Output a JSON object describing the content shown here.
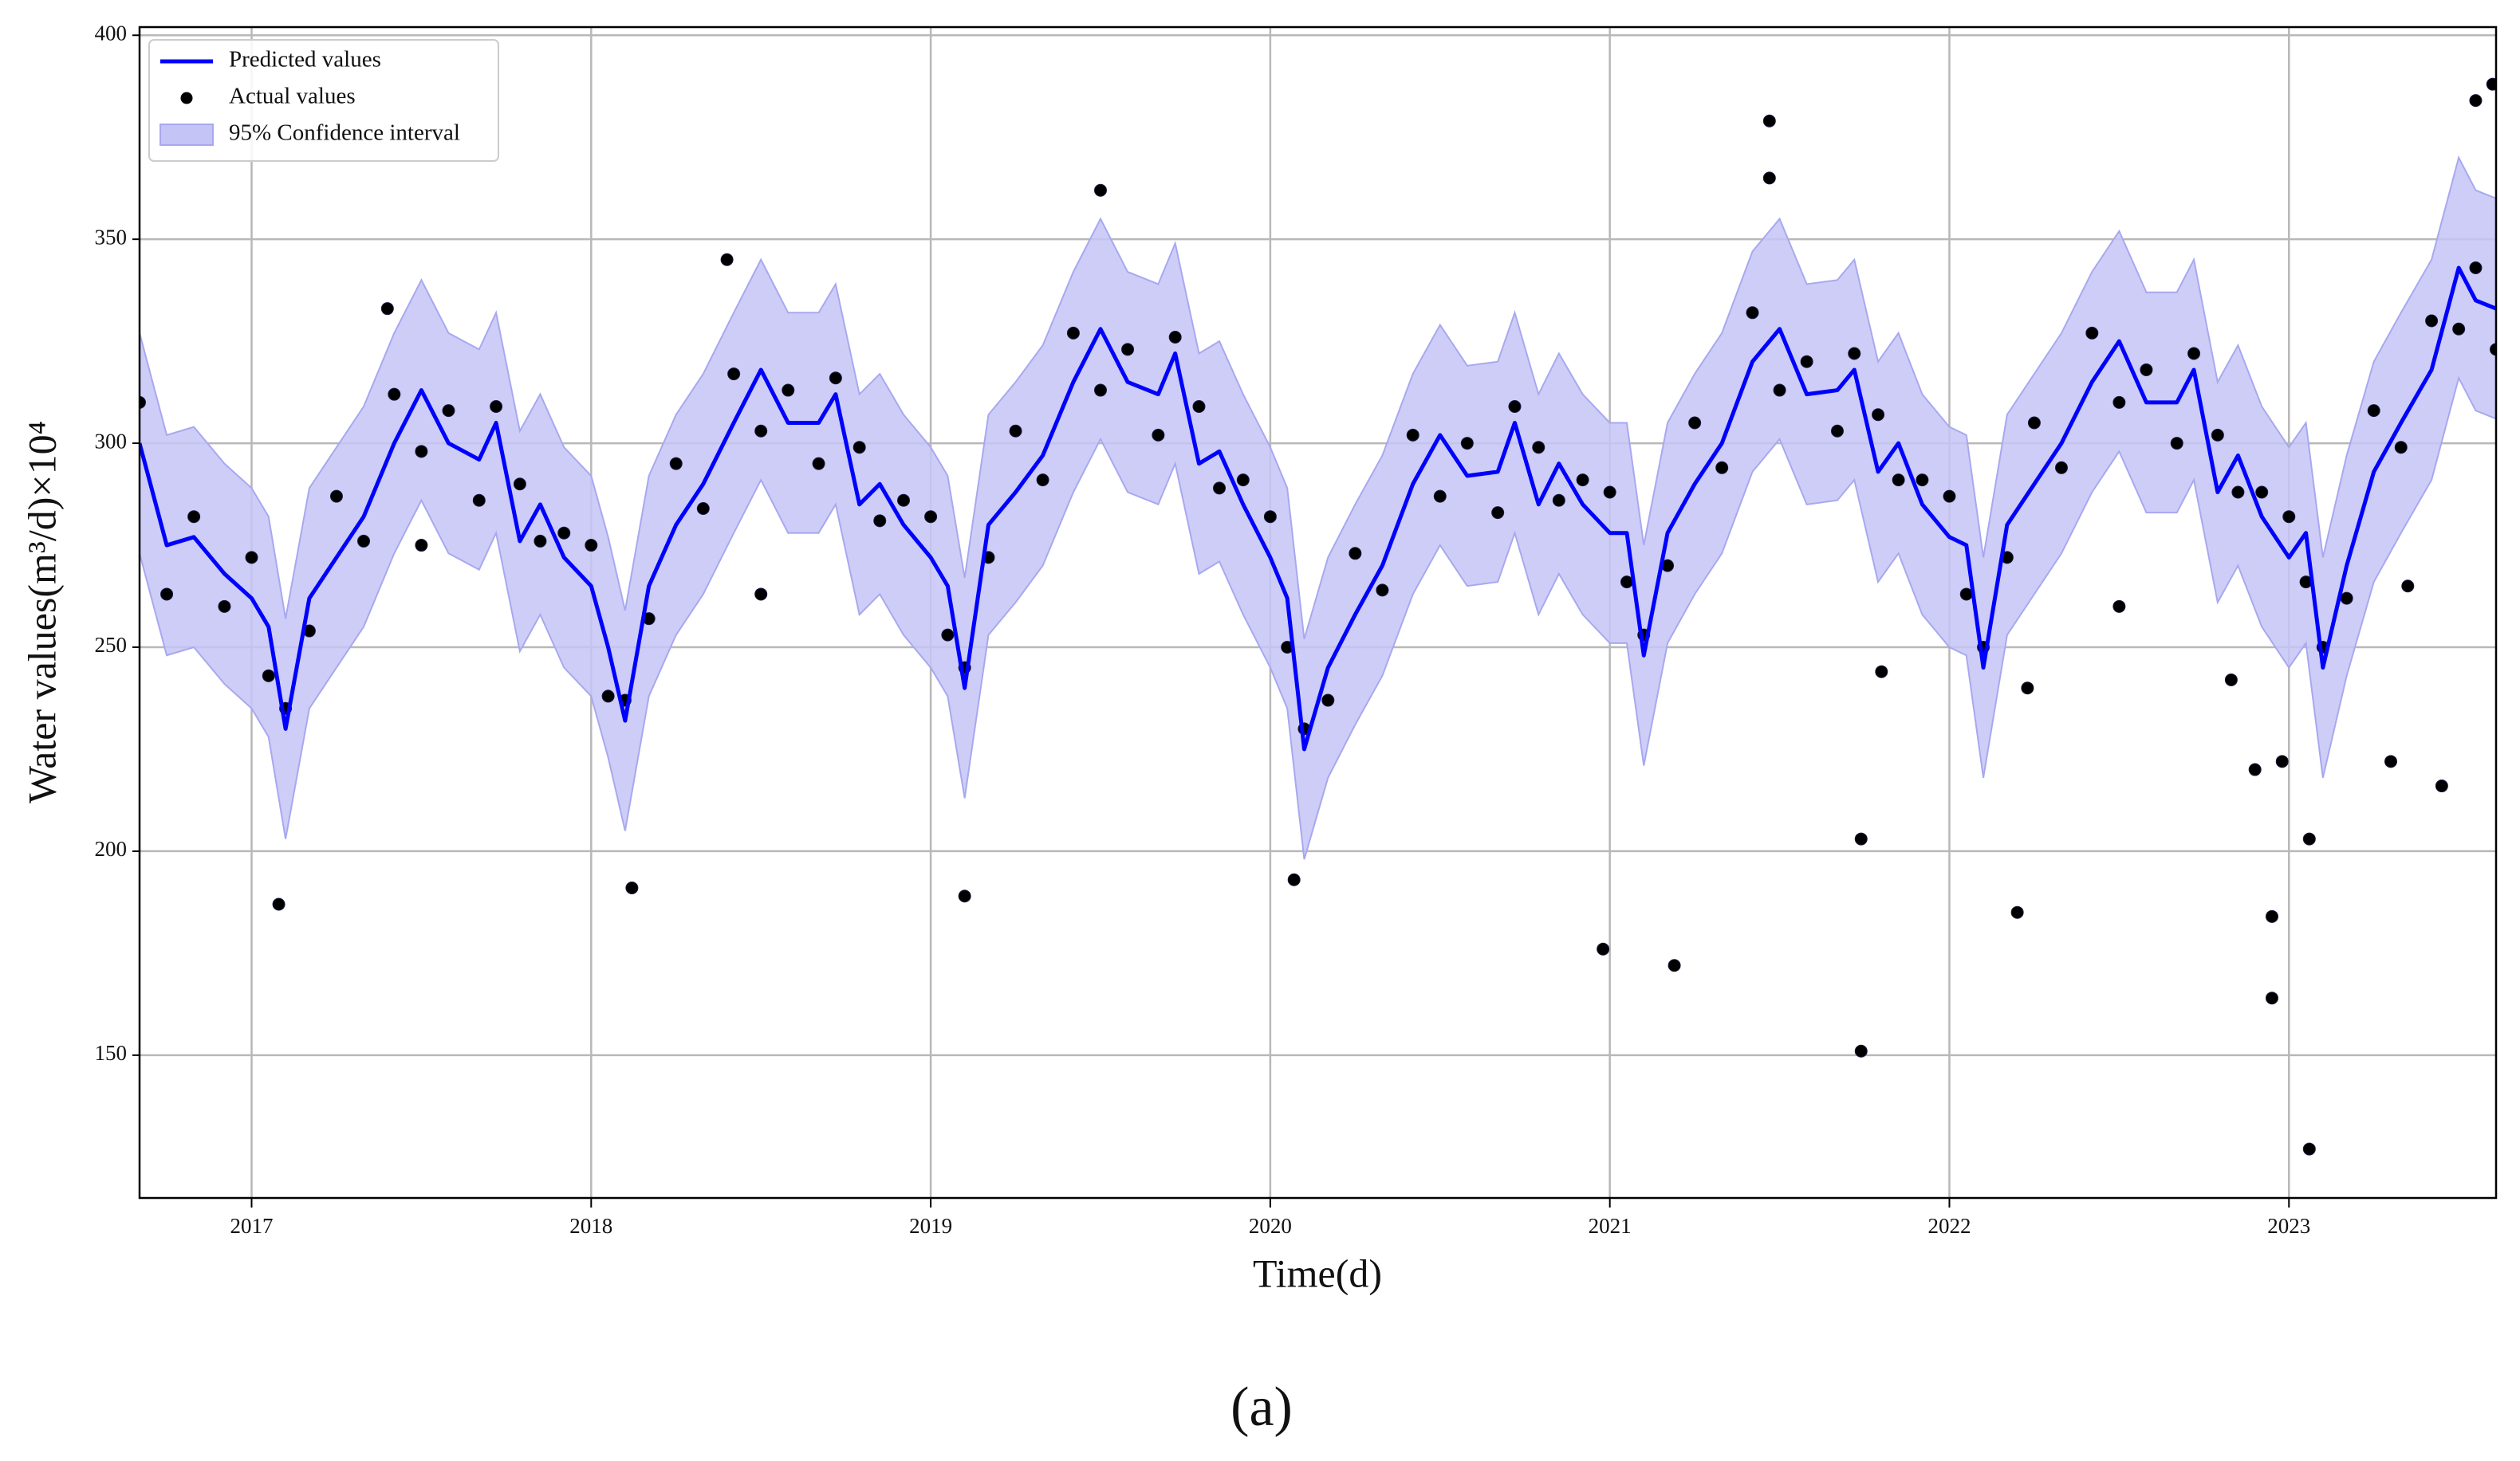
{
  "chart_data": {
    "type": "line",
    "xlabel": "Time(d)",
    "ylabel": "Water values(m³/d)×10⁴",
    "caption": "(a)",
    "xlim": [
      2016.67,
      2023.61
    ],
    "xticks": [
      2017,
      2018,
      2019,
      2020,
      2021,
      2022,
      2023
    ],
    "ylim": [
      115,
      402
    ],
    "yticks": [
      150,
      200,
      250,
      300,
      350,
      400
    ],
    "grid": true,
    "legend": "upper left",
    "x": [
      2016.67,
      2016.75,
      2016.83,
      2016.92,
      2017.0,
      2017.05,
      2017.1,
      2017.17,
      2017.25,
      2017.33,
      2017.42,
      2017.5,
      2017.58,
      2017.67,
      2017.72,
      2017.79,
      2017.85,
      2017.92,
      2018.0,
      2018.05,
      2018.1,
      2018.17,
      2018.25,
      2018.33,
      2018.42,
      2018.5,
      2018.58,
      2018.67,
      2018.72,
      2018.79,
      2018.85,
      2018.92,
      2019.0,
      2019.05,
      2019.1,
      2019.17,
      2019.25,
      2019.33,
      2019.42,
      2019.5,
      2019.58,
      2019.67,
      2019.72,
      2019.79,
      2019.85,
      2019.92,
      2020.0,
      2020.05,
      2020.1,
      2020.17,
      2020.25,
      2020.33,
      2020.42,
      2020.5,
      2020.58,
      2020.67,
      2020.72,
      2020.79,
      2020.85,
      2020.92,
      2021.0,
      2021.05,
      2021.1,
      2021.17,
      2021.25,
      2021.33,
      2021.42,
      2021.5,
      2021.58,
      2021.67,
      2021.72,
      2021.79,
      2021.85,
      2021.92,
      2022.0,
      2022.05,
      2022.1,
      2022.17,
      2022.25,
      2022.33,
      2022.42,
      2022.5,
      2022.58,
      2022.67,
      2022.72,
      2022.79,
      2022.85,
      2022.92,
      2023.0,
      2023.05,
      2023.1,
      2023.17,
      2023.25,
      2023.33,
      2023.42,
      2023.5,
      2023.55,
      2023.61
    ],
    "series": [
      {
        "name": "Predicted values",
        "color": "#0000ff",
        "kind": "line",
        "values": [
          300,
          275,
          277,
          268,
          262,
          255,
          230,
          262,
          272,
          282,
          300,
          313,
          300,
          296,
          305,
          276,
          285,
          272,
          265,
          250,
          232,
          265,
          280,
          290,
          305,
          318,
          305,
          305,
          312,
          285,
          290,
          280,
          272,
          265,
          240,
          280,
          288,
          297,
          315,
          328,
          315,
          312,
          322,
          295,
          298,
          285,
          272,
          262,
          225,
          245,
          258,
          270,
          290,
          302,
          292,
          293,
          305,
          285,
          295,
          285,
          278,
          278,
          248,
          278,
          290,
          300,
          320,
          328,
          312,
          313,
          318,
          293,
          300,
          285,
          277,
          275,
          245,
          280,
          290,
          300,
          315,
          325,
          310,
          310,
          318,
          288,
          297,
          282,
          272,
          278,
          245,
          270,
          293,
          305,
          318,
          343,
          335,
          333
        ]
      },
      {
        "name": "Actual values",
        "color": "#000000",
        "kind": "scatter",
        "x": [
          2016.67,
          2016.75,
          2016.83,
          2016.92,
          2017.0,
          2017.05,
          2017.1,
          2017.17,
          2017.25,
          2017.33,
          2017.42,
          2017.5,
          2017.58,
          2017.67,
          2017.72,
          2017.79,
          2017.85,
          2017.92,
          2018.0,
          2018.05,
          2018.1,
          2018.17,
          2018.25,
          2018.33,
          2018.42,
          2018.5,
          2018.58,
          2018.67,
          2018.72,
          2018.79,
          2018.85,
          2018.92,
          2019.0,
          2019.05,
          2019.1,
          2019.17,
          2019.25,
          2019.33,
          2019.42,
          2019.5,
          2019.58,
          2019.67,
          2019.72,
          2019.79,
          2019.85,
          2019.92,
          2020.0,
          2020.05,
          2020.1,
          2020.17,
          2020.25,
          2020.33,
          2020.42,
          2020.5,
          2020.58,
          2020.67,
          2020.72,
          2020.79,
          2020.85,
          2020.92,
          2021.0,
          2021.05,
          2021.1,
          2021.17,
          2021.25,
          2021.33,
          2021.42,
          2021.5,
          2021.58,
          2021.67,
          2021.72,
          2021.79,
          2021.85,
          2021.92,
          2022.0,
          2022.05,
          2022.1,
          2022.17,
          2022.25,
          2022.33,
          2022.42,
          2022.5,
          2022.58,
          2022.67,
          2022.72,
          2022.79,
          2022.85,
          2022.92,
          2023.0,
          2023.05,
          2023.1,
          2023.17,
          2023.25,
          2023.33,
          2023.42,
          2023.5,
          2023.55,
          2023.61,
          2020.98,
          2021.19,
          2021.74,
          2021.74,
          2022.2,
          2022.23,
          2022.95,
          2022.95,
          2023.06,
          2023.06,
          2022.98,
          2023.45,
          2023.6,
          2023.55,
          2021.47,
          2021.47,
          2019.5,
          2017.08,
          2018.12,
          2019.1,
          2020.07,
          2017.4,
          2018.4,
          2018.5,
          2017.5,
          2022.83,
          2022.9,
          2023.35,
          2023.3,
          2022.5,
          2021.8
        ],
        "values": [
          310,
          263,
          282,
          260,
          272,
          243,
          235,
          254,
          287,
          276,
          312,
          298,
          308,
          286,
          309,
          290,
          276,
          278,
          275,
          238,
          237,
          257,
          295,
          284,
          317,
          303,
          313,
          295,
          316,
          299,
          281,
          286,
          282,
          253,
          245,
          272,
          303,
          291,
          327,
          313,
          323,
          302,
          326,
          309,
          289,
          291,
          282,
          250,
          230,
          237,
          273,
          264,
          302,
          287,
          300,
          283,
          309,
          299,
          286,
          291,
          288,
          266,
          253,
          270,
          305,
          294,
          332,
          313,
          320,
          303,
          322,
          307,
          291,
          291,
          287,
          263,
          250,
          272,
          305,
          294,
          327,
          310,
          318,
          300,
          322,
          302,
          288,
          288,
          282,
          266,
          250,
          262,
          308,
          299,
          330,
          328,
          343,
          323,
          176,
          172,
          203,
          151,
          185,
          240,
          184,
          164,
          127,
          203,
          222,
          216,
          388,
          384,
          379,
          365,
          362,
          187,
          191,
          189,
          193,
          333,
          345,
          263,
          275,
          242,
          220,
          265,
          222,
          260,
          244
        ]
      },
      {
        "name": "95% Confidence interval",
        "color": "#c4c4f6",
        "edge": "#a8a8f0",
        "kind": "band",
        "upper": [
          327,
          302,
          304,
          295,
          289,
          282,
          257,
          289,
          299,
          309,
          327,
          340,
          327,
          323,
          332,
          303,
          312,
          299,
          292,
          277,
          259,
          292,
          307,
          317,
          332,
          345,
          332,
          332,
          339,
          312,
          317,
          307,
          299,
          292,
          267,
          307,
          315,
          324,
          342,
          355,
          342,
          339,
          349,
          322,
          325,
          312,
          299,
          289,
          252,
          272,
          285,
          297,
          317,
          329,
          319,
          320,
          332,
          312,
          322,
          312,
          305,
          305,
          275,
          305,
          317,
          327,
          347,
          355,
          339,
          340,
          345,
          320,
          327,
          312,
          304,
          302,
          272,
          307,
          317,
          327,
          342,
          352,
          337,
          337,
          345,
          315,
          324,
          309,
          299,
          305,
          272,
          297,
          320,
          332,
          345,
          370,
          362,
          360
        ],
        "lower": [
          273,
          248,
          250,
          241,
          235,
          228,
          203,
          235,
          245,
          255,
          273,
          286,
          273,
          269,
          278,
          249,
          258,
          245,
          238,
          223,
          205,
          238,
          253,
          263,
          278,
          291,
          278,
          278,
          285,
          258,
          263,
          253,
          245,
          238,
          213,
          253,
          261,
          270,
          288,
          301,
          288,
          285,
          295,
          268,
          271,
          258,
          245,
          235,
          198,
          218,
          231,
          243,
          263,
          275,
          265,
          266,
          278,
          258,
          268,
          258,
          251,
          251,
          221,
          251,
          263,
          273,
          293,
          301,
          285,
          286,
          291,
          266,
          273,
          258,
          250,
          248,
          218,
          253,
          263,
          273,
          288,
          298,
          283,
          283,
          291,
          261,
          270,
          255,
          245,
          251,
          218,
          243,
          266,
          278,
          291,
          316,
          308,
          306
        ]
      }
    ]
  }
}
